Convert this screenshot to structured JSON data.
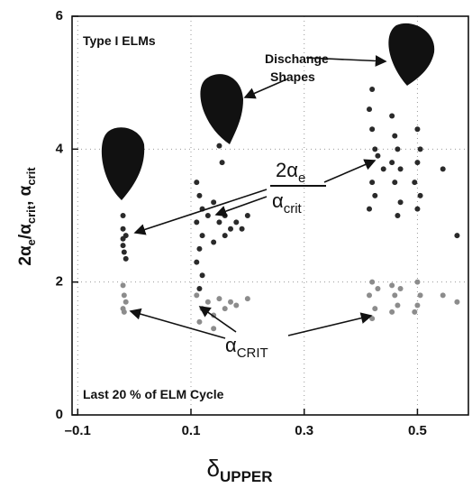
{
  "chart_data": {
    "type": "scatter",
    "x_label": [
      "δ",
      "UPPER"
    ],
    "y_label": [
      "2α",
      "e",
      "/α",
      "crit",
      ", α",
      "crit"
    ],
    "annotations": {
      "type_label": "Type I ELMs",
      "shapes_label": [
        "Dischange",
        "Shapes"
      ],
      "cycle_label": "Last 20 % of ELM Cycle",
      "ratio_label": {
        "numerator": [
          "2α",
          "e"
        ],
        "denominator": [
          "α",
          "crit"
        ]
      },
      "crit_label": [
        "α",
        "CRIT"
      ]
    },
    "xlim": [
      -0.11,
      0.59
    ],
    "xticks": [
      {
        "value": -0.1,
        "label": "–0.1"
      },
      0.1,
      0.3,
      0.5
    ],
    "ylim": [
      0,
      6
    ],
    "yticks": [
      0,
      2,
      4,
      6
    ],
    "grid": true,
    "series": [
      {
        "color": "#2a2a2a",
        "x": [
          -0.02,
          -0.02,
          -0.015,
          -0.02,
          -0.018,
          -0.015,
          -0.02,
          0.11,
          0.115,
          0.12,
          0.11,
          0.12,
          0.115,
          0.11,
          0.12,
          0.115,
          0.13,
          0.14,
          0.15,
          0.16,
          0.17,
          0.18,
          0.16,
          0.15,
          0.155,
          0.14,
          0.2,
          0.19,
          0.42,
          0.415,
          0.42,
          0.425,
          0.415,
          0.42,
          0.425,
          0.415,
          0.43,
          0.44,
          0.455,
          0.46,
          0.465,
          0.455,
          0.46,
          0.47,
          0.465,
          0.47,
          0.5,
          0.505,
          0.5,
          0.495,
          0.505,
          0.5,
          0.545,
          0.57
        ],
        "y": [
          3.0,
          2.8,
          2.7,
          2.55,
          2.45,
          2.35,
          2.65,
          3.5,
          3.3,
          3.1,
          2.9,
          2.7,
          2.5,
          2.3,
          2.1,
          1.9,
          3.0,
          3.2,
          2.9,
          3.0,
          2.8,
          2.9,
          2.7,
          4.05,
          3.8,
          2.6,
          3.0,
          2.8,
          4.9,
          4.6,
          4.3,
          4.0,
          3.8,
          3.5,
          3.3,
          3.1,
          3.9,
          3.7,
          4.5,
          4.2,
          4.0,
          3.8,
          3.5,
          3.2,
          3.0,
          3.7,
          4.3,
          4.0,
          3.8,
          3.5,
          3.3,
          3.1,
          3.7,
          2.7
        ]
      },
      {
        "color": "#8c8c8c",
        "x": [
          -0.02,
          -0.018,
          -0.015,
          -0.02,
          -0.018,
          0.11,
          0.12,
          0.115,
          0.13,
          0.14,
          0.15,
          0.16,
          0.17,
          0.18,
          0.14,
          0.2,
          0.42,
          0.415,
          0.425,
          0.42,
          0.43,
          0.455,
          0.46,
          0.465,
          0.47,
          0.455,
          0.5,
          0.505,
          0.5,
          0.495,
          0.545,
          0.57
        ],
        "y": [
          1.95,
          1.8,
          1.7,
          1.6,
          1.55,
          1.8,
          1.6,
          1.4,
          1.7,
          1.5,
          1.75,
          1.6,
          1.7,
          1.65,
          1.3,
          1.75,
          2.0,
          1.8,
          1.6,
          1.45,
          1.9,
          1.95,
          1.8,
          1.65,
          1.9,
          1.55,
          2.0,
          1.8,
          1.65,
          1.55,
          1.8,
          1.7
        ]
      }
    ]
  }
}
